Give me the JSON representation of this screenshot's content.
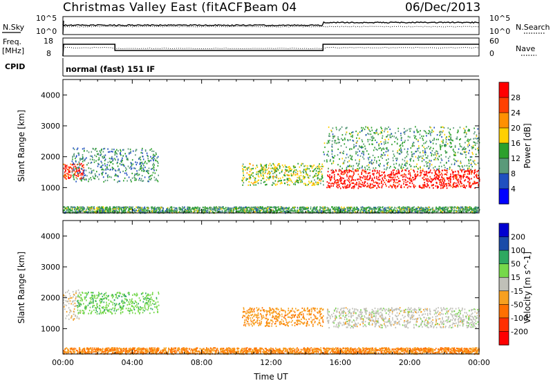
{
  "header": {
    "station": "Christmas Valley East (fitACF)",
    "beam": "Beam 04",
    "date": "06/Dec/2013"
  },
  "panels": {
    "nsky": {
      "label": "N.Sky",
      "left_ticks": [
        "10^5",
        "10^0"
      ],
      "right_ticks": [
        "10^5",
        "10^0"
      ],
      "right_label": "N.Search",
      "right_style": "dotted"
    },
    "freq": {
      "label_line1": "Freq.",
      "label_line2": "[MHz]",
      "left_ticks": [
        "18",
        "8"
      ],
      "right_ticks": [
        "60",
        "0"
      ],
      "right_label": "Nave",
      "right_style": "dotted"
    },
    "cpid": {
      "label": "CPID",
      "value": "normal (fast) 151 IF"
    }
  },
  "chart_data": [
    {
      "type": "heatmap",
      "title": "",
      "xlabel": "",
      "ylabel": "Slant Range [km]",
      "x_unit": "hours UT",
      "xlim": [
        0,
        24
      ],
      "ylim": [
        180,
        4500
      ],
      "ytick_labels": [
        "1000",
        "2000",
        "3000",
        "4000"
      ],
      "ytick_values": [
        1000,
        2000,
        3000,
        4000
      ],
      "colorbar": {
        "label": "Power [dB]",
        "tick_labels": [
          "28",
          "24",
          "20",
          "16",
          "12",
          "8",
          "4"
        ],
        "colors": [
          "#ff0000",
          "#ff4000",
          "#ff9000",
          "#ffd000",
          "#2ca02c",
          "#5a9a7a",
          "#2050c0",
          "#0000ff"
        ]
      },
      "features": [
        {
          "name": "morning band",
          "t": [
            0.0,
            1.2
          ],
          "range": [
            1300,
            1800
          ],
          "dB": 26
        },
        {
          "name": "morning scatter",
          "t": [
            0.5,
            5.5
          ],
          "range": [
            1200,
            2300
          ],
          "dB": 8
        },
        {
          "name": "afternoon band",
          "t": [
            10.3,
            15.0
          ],
          "range": [
            1100,
            1800
          ],
          "dB": 14
        },
        {
          "name": "evening band",
          "t": [
            15.2,
            24.0
          ],
          "range": [
            1000,
            1600
          ],
          "dB": 28
        },
        {
          "name": "evening upper scatter",
          "t": [
            15.0,
            24.0
          ],
          "range": [
            1600,
            3000
          ],
          "dB": 10
        },
        {
          "name": "ground scatter near",
          "t": [
            0.0,
            24.0
          ],
          "range": [
            200,
            400
          ],
          "dB": 10
        }
      ]
    },
    {
      "type": "heatmap",
      "title": "",
      "xlabel": "Time UT",
      "ylabel": "Slant Range [km]",
      "x_unit": "hours UT",
      "xlim": [
        0,
        24
      ],
      "ylim": [
        180,
        4500
      ],
      "xtick_labels": [
        "00:00",
        "04:00",
        "08:00",
        "12:00",
        "16:00",
        "20:00",
        "00:00"
      ],
      "xtick_values": [
        0,
        4,
        8,
        12,
        16,
        20,
        24
      ],
      "ytick_labels": [
        "1000",
        "2000",
        "3000",
        "4000"
      ],
      "ytick_values": [
        1000,
        2000,
        3000,
        4000
      ],
      "colorbar": {
        "label": "Velocity [m s^-1]",
        "tick_labels": [
          "200",
          "100",
          "50",
          "15",
          "-15",
          "-50",
          "-100",
          "-200"
        ],
        "colors": [
          "#0000d0",
          "#1a4ba8",
          "#2ea860",
          "#76d84a",
          "#c0c0b8",
          "#f7a020",
          "#ff7000",
          "#ff3000",
          "#ff0000"
        ]
      },
      "features": [
        {
          "name": "morning echoes",
          "t": [
            0.0,
            1.0
          ],
          "range": [
            1300,
            2300
          ],
          "velocity": -10
        },
        {
          "name": "morning green",
          "t": [
            0.8,
            5.5
          ],
          "range": [
            1500,
            2200
          ],
          "velocity": 40
        },
        {
          "name": "afternoon orange",
          "t": [
            10.3,
            15.0
          ],
          "range": [
            1100,
            1700
          ],
          "velocity": -40
        },
        {
          "name": "evening grey",
          "t": [
            15.2,
            24.0
          ],
          "range": [
            1050,
            1700
          ],
          "velocity": 0
        },
        {
          "name": "ground orange",
          "t": [
            0.0,
            24.0
          ],
          "range": [
            200,
            400
          ],
          "velocity": -50
        }
      ]
    }
  ]
}
